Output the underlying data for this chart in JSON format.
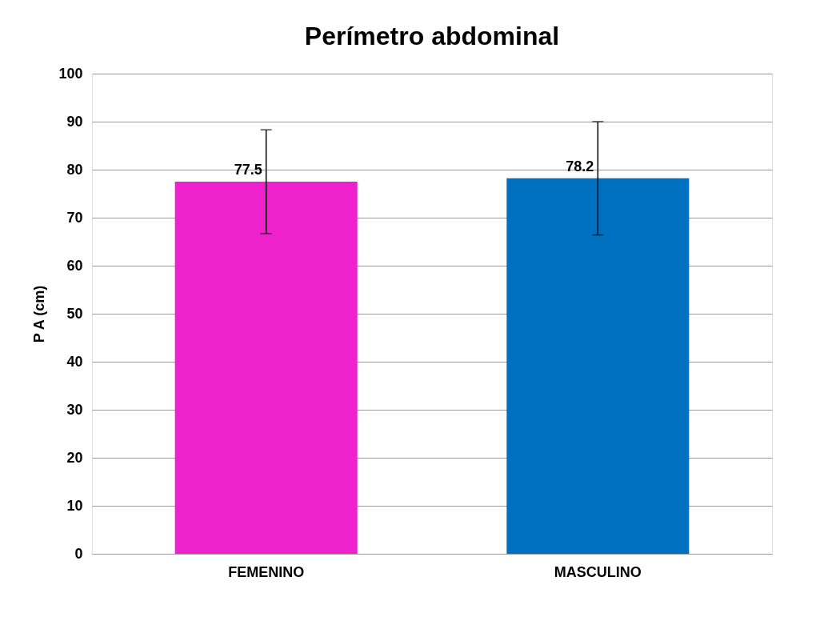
{
  "chart_data": {
    "type": "bar",
    "title": "Perímetro abdominal",
    "ylabel": "P A (cm)",
    "categories": [
      "FEMENINO",
      "MASCULINO"
    ],
    "values": [
      77.5,
      78.2
    ],
    "colors": [
      "#ee22cc",
      "#0070c0"
    ],
    "errors": [
      [
        66.7,
        88.3
      ],
      [
        66.4,
        90.0
      ]
    ],
    "ylim": [
      0,
      100
    ],
    "yticks": [
      0,
      10,
      20,
      30,
      40,
      50,
      60,
      70,
      80,
      90,
      100
    ],
    "grid": "y",
    "data_labels": true
  }
}
